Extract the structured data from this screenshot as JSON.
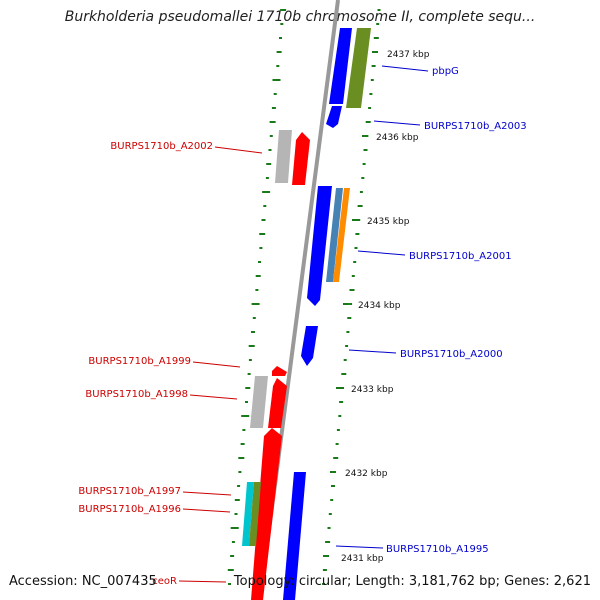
{
  "title": "Burkholderia pseudomallei 1710b chromosome II, complete sequ...",
  "footer": {
    "accession": "Accession: NC_007435",
    "topology": "Topology: circular; Length: 3,181,762 bp; Genes: 2,621"
  },
  "ticks": [
    "2437 kbp",
    "2436 kbp",
    "2435 kbp",
    "2434 kbp",
    "2433 kbp",
    "2432 kbp",
    "2431 kbp"
  ],
  "genes_right": [
    {
      "label": "pbpG",
      "color": "#0000cc"
    },
    {
      "label": "BURPS1710b_A2003",
      "color": "#0000cc"
    },
    {
      "label": "BURPS1710b_A2001",
      "color": "#0000cc"
    },
    {
      "label": "BURPS1710b_A2000",
      "color": "#0000cc"
    },
    {
      "label": "BURPS1710b_A1995",
      "color": "#0000cc"
    }
  ],
  "genes_left": [
    {
      "label": "BURPS1710b_A2002",
      "color": "#cc0000"
    },
    {
      "label": "BURPS1710b_A1999",
      "color": "#cc0000"
    },
    {
      "label": "BURPS1710b_A1998",
      "color": "#cc0000"
    },
    {
      "label": "BURPS1710b_A1997",
      "color": "#cc0000"
    },
    {
      "label": "BURPS1710b_A1996",
      "color": "#cc0000"
    },
    {
      "label": "ceoR",
      "color": "#cc0000"
    }
  ],
  "colors": {
    "forward_cds": "#0000ff",
    "reverse_cds": "#ff0000",
    "gene_grey": "#b5b5b5",
    "green_feature": "#6b8e23",
    "steel_feature": "#4682b4",
    "orange_feature": "#ff8c00",
    "cyan_feature": "#00c5cd",
    "backbone": "#999999",
    "gc_dash": "#1a7a1a"
  }
}
